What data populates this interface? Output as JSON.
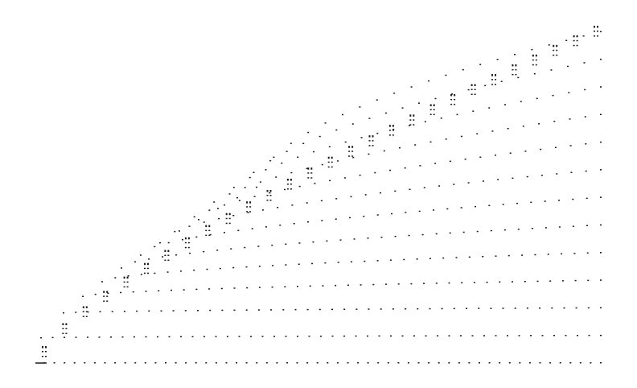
{
  "figure": {
    "description_hidden": "",
    "ink_color": "#1a1a1a",
    "background_color": "#ffffff",
    "columns": 28,
    "rows_last_column": 12
  }
}
